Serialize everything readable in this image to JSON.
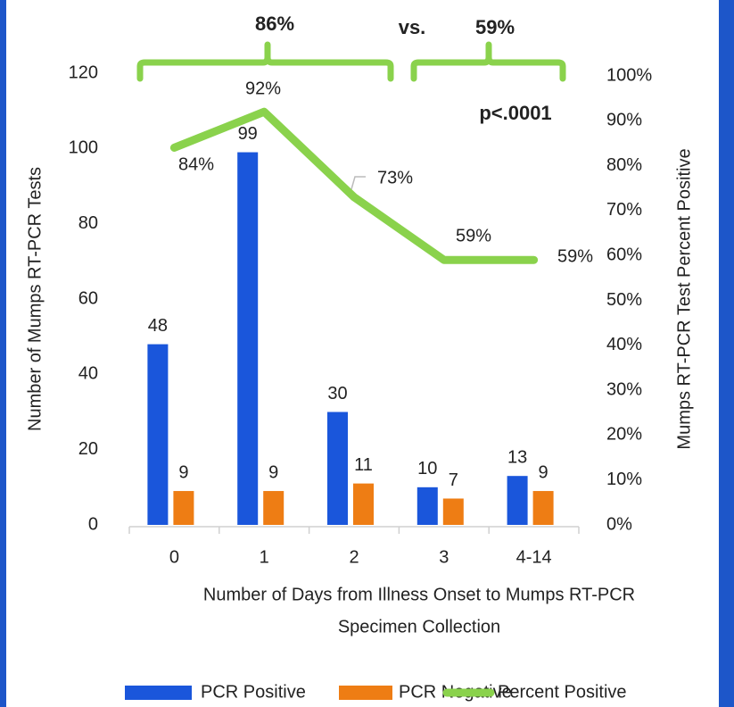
{
  "chart_data": {
    "type": "bar",
    "categories": [
      "0",
      "1",
      "2",
      "3",
      "4-14"
    ],
    "series": [
      {
        "name": "PCR Positive",
        "color": "#1a56db",
        "values": [
          48,
          99,
          30,
          10,
          13
        ]
      },
      {
        "name": "PCR Negative",
        "color": "#ee7d14",
        "values": [
          9,
          9,
          11,
          7,
          9
        ]
      },
      {
        "name": "Percent Positive",
        "type": "line",
        "axis": "y2",
        "color": "#8ad24c",
        "values": [
          84,
          92,
          73,
          59,
          59
        ],
        "value_labels": [
          "84%",
          "92%",
          "73%",
          "59%",
          "59%"
        ]
      }
    ],
    "ylim": [
      0,
      120
    ],
    "yticks": [
      0,
      20,
      40,
      60,
      80,
      100,
      120
    ],
    "y2lim": [
      0,
      100
    ],
    "y2ticks": [
      {
        "value": 0,
        "label": "0%"
      },
      {
        "value": 10,
        "label": "10%"
      },
      {
        "value": 20,
        "label": "20%"
      },
      {
        "value": 30,
        "label": "30%"
      },
      {
        "value": 40,
        "label": "40%"
      },
      {
        "value": 50,
        "label": "50%"
      },
      {
        "value": 60,
        "label": "60%"
      },
      {
        "value": 70,
        "label": "70%"
      },
      {
        "value": 80,
        "label": "80%"
      },
      {
        "value": 90,
        "label": "90%"
      },
      {
        "value": 100,
        "label": "100%"
      }
    ],
    "ylabel": "Number of Mumps RT-PCR Tests",
    "y2label": "Mumps RT-PCR Test Percent Positive",
    "xlabel": [
      "Number of Days from Illness Onset to Mumps RT-PCR",
      "Specimen Collection"
    ],
    "annotations": [
      "86%",
      "vs.",
      "59%",
      "p<.0001"
    ]
  }
}
